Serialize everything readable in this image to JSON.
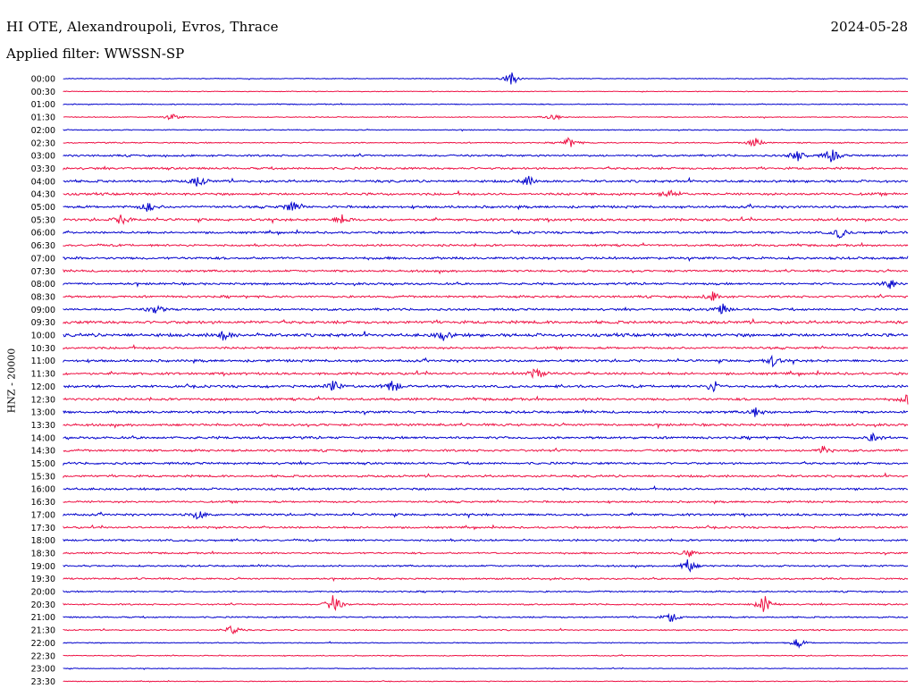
{
  "header": {
    "title": "HI OTE, Alexandroupoli, Evros, Thrace",
    "date": "2024-05-28",
    "filter": "Applied filter: WWSSN-SP"
  },
  "chart_data": {
    "type": "line",
    "ylabel": "HNZ - 20000",
    "row_labels": [
      "00:00",
      "00:30",
      "01:00",
      "01:30",
      "02:00",
      "02:30",
      "03:00",
      "03:30",
      "04:00",
      "04:30",
      "05:00",
      "05:30",
      "06:00",
      "06:30",
      "07:00",
      "07:30",
      "08:00",
      "08:30",
      "09:00",
      "09:30",
      "10:00",
      "10:30",
      "11:00",
      "11:30",
      "12:00",
      "12:30",
      "13:00",
      "13:30",
      "14:00",
      "14:30",
      "15:00",
      "15:30",
      "16:00",
      "16:30",
      "17:00",
      "17:30",
      "18:00",
      "18:30",
      "19:00",
      "19:30",
      "20:00",
      "20:30",
      "21:00",
      "21:30",
      "22:00",
      "22:30",
      "23:00",
      "23:30"
    ],
    "colors": [
      "#0000cc",
      "#ee1144"
    ],
    "noise_levels": [
      0.3,
      0.3,
      0.4,
      0.4,
      0.4,
      0.5,
      0.8,
      0.9,
      1.0,
      1.0,
      1.0,
      1.0,
      0.9,
      0.9,
      1.0,
      0.9,
      0.9,
      0.9,
      0.9,
      1.2,
      1.3,
      0.9,
      1.0,
      1.0,
      1.0,
      1.0,
      1.0,
      1.0,
      1.0,
      0.9,
      0.9,
      0.9,
      0.9,
      0.8,
      0.9,
      0.8,
      0.8,
      0.7,
      0.7,
      0.7,
      0.6,
      0.6,
      0.6,
      0.5,
      0.4,
      0.4,
      0.3,
      0.3
    ],
    "events": [
      {
        "row": 0,
        "t": 0.53,
        "amp": 10
      },
      {
        "row": 3,
        "t": 0.13,
        "amp": 4
      },
      {
        "row": 3,
        "t": 0.58,
        "amp": 5
      },
      {
        "row": 5,
        "t": 0.6,
        "amp": 7
      },
      {
        "row": 5,
        "t": 0.82,
        "amp": 7
      },
      {
        "row": 6,
        "t": 0.87,
        "amp": 8
      },
      {
        "row": 6,
        "t": 0.91,
        "amp": 9
      },
      {
        "row": 8,
        "t": 0.16,
        "amp": 7
      },
      {
        "row": 8,
        "t": 0.55,
        "amp": 6
      },
      {
        "row": 9,
        "t": 0.72,
        "amp": 6
      },
      {
        "row": 10,
        "t": 0.1,
        "amp": 6
      },
      {
        "row": 10,
        "t": 0.27,
        "amp": 7
      },
      {
        "row": 11,
        "t": 0.07,
        "amp": 7
      },
      {
        "row": 11,
        "t": 0.33,
        "amp": 6
      },
      {
        "row": 12,
        "t": 0.92,
        "amp": 7
      },
      {
        "row": 16,
        "t": 0.98,
        "amp": 7
      },
      {
        "row": 17,
        "t": 0.77,
        "amp": 6
      },
      {
        "row": 18,
        "t": 0.78,
        "amp": 7
      },
      {
        "row": 18,
        "t": 0.11,
        "amp": 6
      },
      {
        "row": 20,
        "t": 0.19,
        "amp": 6
      },
      {
        "row": 20,
        "t": 0.45,
        "amp": 6
      },
      {
        "row": 22,
        "t": 0.84,
        "amp": 6
      },
      {
        "row": 23,
        "t": 0.56,
        "amp": 7
      },
      {
        "row": 24,
        "t": 0.32,
        "amp": 8
      },
      {
        "row": 24,
        "t": 0.39,
        "amp": 9
      },
      {
        "row": 24,
        "t": 0.77,
        "amp": 7
      },
      {
        "row": 25,
        "t": 1.0,
        "amp": 8
      },
      {
        "row": 26,
        "t": 0.82,
        "amp": 6
      },
      {
        "row": 28,
        "t": 0.96,
        "amp": 6
      },
      {
        "row": 29,
        "t": 0.9,
        "amp": 5
      },
      {
        "row": 34,
        "t": 0.16,
        "amp": 6
      },
      {
        "row": 37,
        "t": 0.74,
        "amp": 5
      },
      {
        "row": 38,
        "t": 0.74,
        "amp": 9
      },
      {
        "row": 41,
        "t": 0.32,
        "amp": 12
      },
      {
        "row": 41,
        "t": 0.83,
        "amp": 11
      },
      {
        "row": 42,
        "t": 0.72,
        "amp": 6
      },
      {
        "row": 43,
        "t": 0.2,
        "amp": 6
      },
      {
        "row": 44,
        "t": 0.87,
        "amp": 6
      }
    ]
  }
}
